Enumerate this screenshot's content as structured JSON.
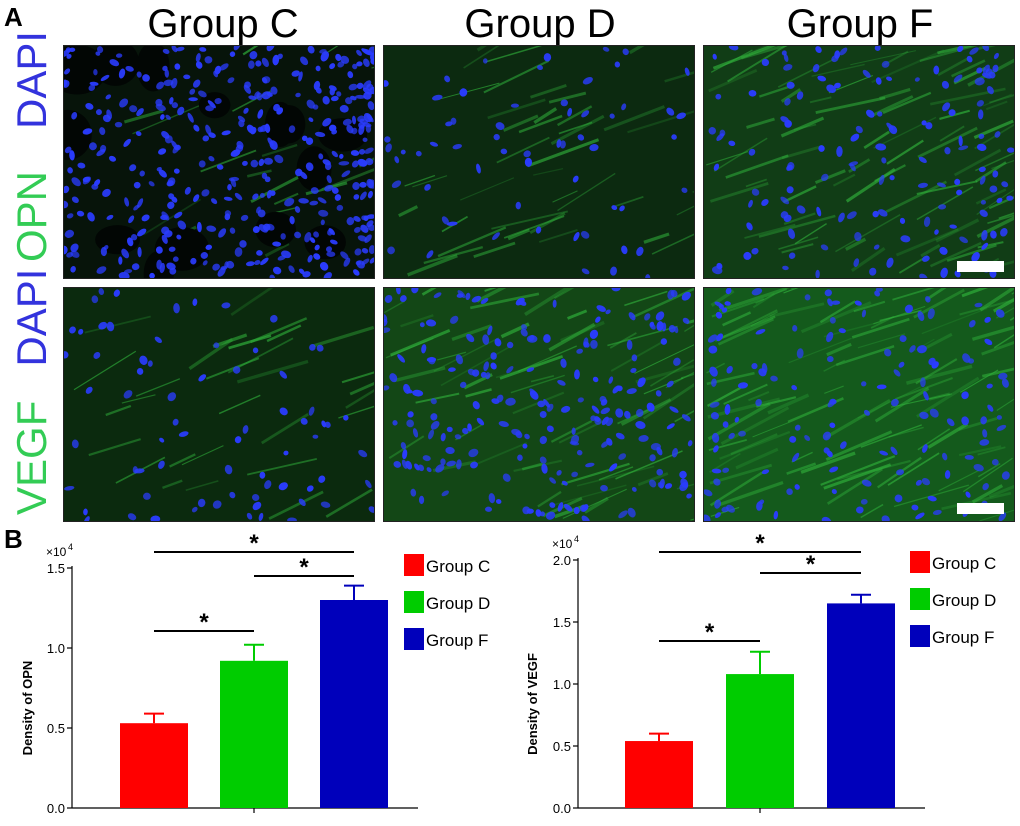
{
  "panels": {
    "A": {
      "letter": "A"
    },
    "B": {
      "letter": "B"
    }
  },
  "column_titles": [
    "Group C",
    "Group D",
    "Group F"
  ],
  "row_labels": [
    {
      "marker": "OPN",
      "counterstain": "DAPI"
    },
    {
      "marker": "VEGF",
      "counterstain": "DAPI"
    }
  ],
  "colors": {
    "dapi_label": "#3333dd",
    "marker_label": "#33cc55",
    "group_c": "#ff0000",
    "group_d": "#00cc00",
    "group_f": "#0000bb",
    "nuclei": "#2a3cff",
    "tissue": "#1f8a2a"
  },
  "chart_data": [
    {
      "type": "bar",
      "categories": [
        "Group C",
        "Group D",
        "Group F"
      ],
      "values": [
        0.53,
        0.92,
        1.3
      ],
      "errors": [
        0.06,
        0.1,
        0.09
      ],
      "ylabel": "Density of OPN",
      "multiplier": "×10",
      "multiplier_exp": "4",
      "ylim": [
        0,
        1.5
      ],
      "yticks": [
        "0.0",
        "0.5",
        "1.0",
        "1.5"
      ],
      "legend": [
        "Group C",
        "Group D",
        "Group F"
      ],
      "significance": [
        "*",
        "*",
        "*"
      ]
    },
    {
      "type": "bar",
      "categories": [
        "Group C",
        "Group D",
        "Group F"
      ],
      "values": [
        0.54,
        1.08,
        1.65
      ],
      "errors": [
        0.06,
        0.18,
        0.07
      ],
      "ylabel": "Density of VEGF",
      "multiplier": "×10",
      "multiplier_exp": "4",
      "ylim": [
        0,
        2.0
      ],
      "yticks": [
        "0.0",
        "0.5",
        "1.0",
        "1.5",
        "2.0"
      ],
      "legend": [
        "Group C",
        "Group D",
        "Group F"
      ],
      "significance": [
        "*",
        "*",
        "*"
      ]
    }
  ]
}
